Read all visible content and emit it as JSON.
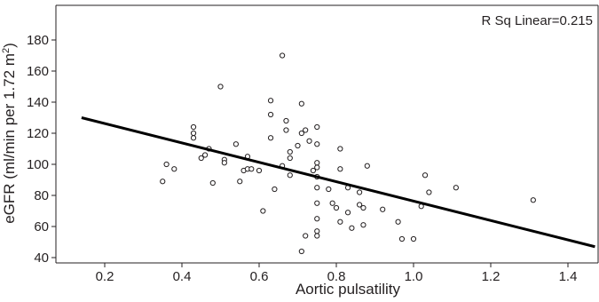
{
  "chart_data": {
    "type": "scatter",
    "title": "",
    "xlabel": "Aortic pulsatility",
    "ylabel": "eGFR (ml/min per 1.72 m²)",
    "ylabel_parts": {
      "main": "eGFR (ml/min per 1.72 m",
      "superscript": "2",
      "tail": ")"
    },
    "annotation": "R Sq Linear=0.215",
    "xlim": [
      0.14,
      1.47
    ],
    "ylim": [
      38,
      186
    ],
    "xticks": [
      0.2,
      0.4,
      0.6,
      0.8,
      1.0,
      1.2,
      1.4
    ],
    "xtick_labels": [
      "0.2",
      "0.4",
      "0.6",
      "0.8",
      "1.0",
      "1.2",
      "1.4"
    ],
    "yticks": [
      40,
      60,
      80,
      100,
      120,
      140,
      160,
      180
    ],
    "ytick_labels": [
      "40",
      "60",
      "80",
      "100",
      "120",
      "140",
      "160",
      "180"
    ],
    "grid": false,
    "legend": "none",
    "marker": "open-circle",
    "fit_line": {
      "x": [
        0.14,
        1.47
      ],
      "y": [
        130,
        47
      ]
    },
    "points": [
      {
        "x": 0.35,
        "y": 89
      },
      {
        "x": 0.36,
        "y": 100
      },
      {
        "x": 0.38,
        "y": 97
      },
      {
        "x": 0.43,
        "y": 124
      },
      {
        "x": 0.43,
        "y": 120
      },
      {
        "x": 0.43,
        "y": 117
      },
      {
        "x": 0.45,
        "y": 104
      },
      {
        "x": 0.46,
        "y": 106
      },
      {
        "x": 0.47,
        "y": 110
      },
      {
        "x": 0.48,
        "y": 88
      },
      {
        "x": 0.5,
        "y": 150
      },
      {
        "x": 0.51,
        "y": 103
      },
      {
        "x": 0.51,
        "y": 101
      },
      {
        "x": 0.54,
        "y": 113
      },
      {
        "x": 0.55,
        "y": 89
      },
      {
        "x": 0.56,
        "y": 96
      },
      {
        "x": 0.57,
        "y": 97
      },
      {
        "x": 0.57,
        "y": 105
      },
      {
        "x": 0.58,
        "y": 97
      },
      {
        "x": 0.6,
        "y": 96
      },
      {
        "x": 0.61,
        "y": 70
      },
      {
        "x": 0.63,
        "y": 141
      },
      {
        "x": 0.63,
        "y": 132
      },
      {
        "x": 0.63,
        "y": 117
      },
      {
        "x": 0.64,
        "y": 84
      },
      {
        "x": 0.66,
        "y": 170
      },
      {
        "x": 0.66,
        "y": 99
      },
      {
        "x": 0.67,
        "y": 128
      },
      {
        "x": 0.67,
        "y": 122
      },
      {
        "x": 0.68,
        "y": 108
      },
      {
        "x": 0.68,
        "y": 104
      },
      {
        "x": 0.68,
        "y": 93
      },
      {
        "x": 0.7,
        "y": 112
      },
      {
        "x": 0.71,
        "y": 139
      },
      {
        "x": 0.71,
        "y": 120
      },
      {
        "x": 0.72,
        "y": 122
      },
      {
        "x": 0.71,
        "y": 44
      },
      {
        "x": 0.72,
        "y": 54
      },
      {
        "x": 0.73,
        "y": 115
      },
      {
        "x": 0.74,
        "y": 96
      },
      {
        "x": 0.75,
        "y": 124
      },
      {
        "x": 0.75,
        "y": 113
      },
      {
        "x": 0.75,
        "y": 101
      },
      {
        "x": 0.75,
        "y": 98
      },
      {
        "x": 0.75,
        "y": 92
      },
      {
        "x": 0.75,
        "y": 85
      },
      {
        "x": 0.75,
        "y": 75
      },
      {
        "x": 0.75,
        "y": 65
      },
      {
        "x": 0.75,
        "y": 57
      },
      {
        "x": 0.75,
        "y": 54
      },
      {
        "x": 0.78,
        "y": 84
      },
      {
        "x": 0.79,
        "y": 75
      },
      {
        "x": 0.8,
        "y": 72
      },
      {
        "x": 0.81,
        "y": 110
      },
      {
        "x": 0.81,
        "y": 97
      },
      {
        "x": 0.81,
        "y": 63
      },
      {
        "x": 0.83,
        "y": 85
      },
      {
        "x": 0.83,
        "y": 69
      },
      {
        "x": 0.84,
        "y": 59
      },
      {
        "x": 0.86,
        "y": 82
      },
      {
        "x": 0.86,
        "y": 74
      },
      {
        "x": 0.87,
        "y": 61
      },
      {
        "x": 0.87,
        "y": 72
      },
      {
        "x": 0.88,
        "y": 99
      },
      {
        "x": 0.92,
        "y": 71
      },
      {
        "x": 0.96,
        "y": 63
      },
      {
        "x": 0.97,
        "y": 52
      },
      {
        "x": 1.0,
        "y": 52
      },
      {
        "x": 1.02,
        "y": 73
      },
      {
        "x": 1.03,
        "y": 93
      },
      {
        "x": 1.04,
        "y": 82
      },
      {
        "x": 1.11,
        "y": 85
      },
      {
        "x": 1.31,
        "y": 77
      }
    ]
  }
}
